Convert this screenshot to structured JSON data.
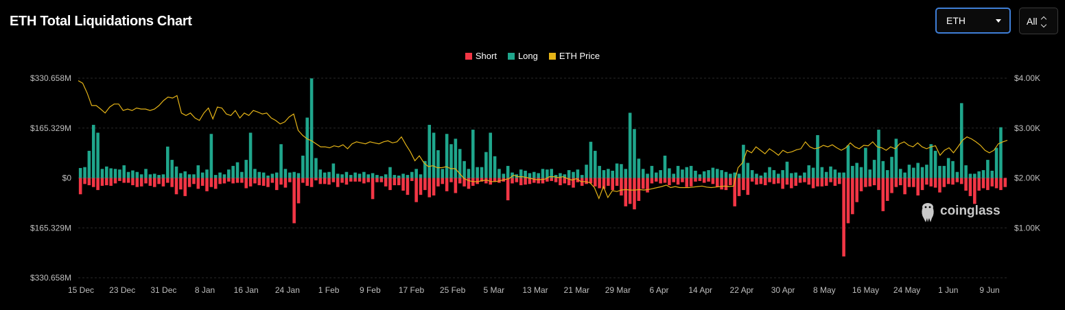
{
  "title": "ETH Total Liquidations Chart",
  "controls": {
    "coin_value": "ETH",
    "range_value": "All"
  },
  "watermark": "coinglass",
  "colors": {
    "short": "#f23645",
    "long": "#1fa68c",
    "price": "#e5b417",
    "grid": "#2a2a2a"
  },
  "legend": [
    {
      "label": "Short",
      "color": "#f23645"
    },
    {
      "label": "Long",
      "color": "#1fa68c"
    },
    {
      "label": "ETH Price",
      "color": "#e5b417"
    }
  ],
  "chart_data": {
    "type": "bar",
    "title": "ETH Total Liquidations Chart",
    "left_axis_ticks": [
      "$330.658M",
      "$165.329M",
      "$0",
      "$165.329M",
      "$330.658M"
    ],
    "right_axis_ticks": [
      "$4.00K",
      "$3.00K",
      "$2.00K",
      "$1.00K"
    ],
    "ylim_left": [
      -330.658,
      330.658
    ],
    "ylim_right": [
      0,
      4.0
    ],
    "x_tick_labels": [
      "15 Dec",
      "23 Dec",
      "31 Dec",
      "8 Jan",
      "16 Jan",
      "24 Jan",
      "1 Feb",
      "9 Feb",
      "17 Feb",
      "25 Feb",
      "5 Mar",
      "13 Mar",
      "21 Mar",
      "29 Mar",
      "6 Apr",
      "14 Apr",
      "22 Apr",
      "30 Apr",
      "8 May",
      "16 May",
      "24 May",
      "1 Jun",
      "9 Jun"
    ],
    "grid": true,
    "legend_position": "top-center",
    "series": [
      {
        "name": "Long",
        "unit": "$M",
        "values": [
          33,
          36,
          90,
          176,
          150,
          30,
          38,
          32,
          30,
          28,
          42,
          20,
          25,
          20,
          12,
          30,
          12,
          14,
          10,
          12,
          104,
          60,
          38,
          16,
          22,
          12,
          12,
          42,
          18,
          28,
          146,
          10,
          18,
          12,
          28,
          40,
          52,
          20,
          60,
          150,
          30,
          20,
          18,
          8,
          14,
          18,
          112,
          30,
          18,
          20,
          16,
          74,
          200,
          330,
          66,
          28,
          18,
          20,
          48,
          14,
          12,
          20,
          10,
          18,
          14,
          20,
          12,
          16,
          10,
          6,
          12,
          36,
          10,
          8,
          14,
          10,
          20,
          30,
          12,
          56,
          176,
          150,
          92,
          30,
          146,
          112,
          130,
          96,
          56,
          30,
          160,
          36,
          36,
          86,
          150,
          72,
          30,
          14,
          40,
          18,
          12,
          28,
          24,
          16,
          20,
          16,
          30,
          28,
          30,
          10,
          16,
          12,
          26,
          20,
          28,
          10,
          44,
          120,
          90,
          40,
          26,
          30,
          24,
          48,
          46,
          30,
          216,
          162,
          64,
          30,
          14,
          40,
          18,
          26,
          74,
          32,
          14,
          40,
          28,
          36,
          40,
          24,
          12,
          22,
          26,
          34,
          30,
          26,
          20,
          14,
          18,
          14,
          110,
          50,
          26,
          14,
          8,
          18,
          36,
          26,
          14,
          26,
          54,
          16,
          18,
          8,
          18,
          42,
          34,
          142,
          36,
          20,
          38,
          28,
          18,
          18,
          108,
          40,
          50,
          36,
          100,
          28,
          60,
          160,
          56,
          26,
          70,
          130,
          30,
          18,
          44,
          34,
          50,
          36,
          44,
          112,
          90,
          40,
          40,
          66,
          56,
          20,
          248,
          42,
          14,
          14,
          22,
          26,
          60,
          24,
          100,
          168
        ],
        "note": "Long liquidations (positive bars)"
      },
      {
        "name": "Short",
        "unit": "$M",
        "values": [
          54,
          20,
          24,
          30,
          40,
          26,
          24,
          26,
          18,
          10,
          16,
          16,
          24,
          30,
          28,
          18,
          26,
          30,
          20,
          28,
          16,
          30,
          54,
          38,
          60,
          30,
          20,
          36,
          26,
          44,
          30,
          36,
          20,
          18,
          12,
          18,
          16,
          16,
          34,
          28,
          18,
          24,
          26,
          30,
          16,
          40,
          22,
          32,
          14,
          150,
          84,
          16,
          26,
          30,
          8,
          20,
          20,
          22,
          14,
          30,
          16,
          22,
          12,
          12,
          12,
          18,
          14,
          70,
          14,
          14,
          28,
          40,
          24,
          24,
          42,
          56,
          10,
          80,
          56,
          40,
          64,
          58,
          28,
          20,
          44,
          14,
          50,
          18,
          28,
          36,
          26,
          20,
          12,
          18,
          22,
          12,
          16,
          12,
          74,
          18,
          14,
          24,
          22,
          20,
          16,
          18,
          18,
          12,
          10,
          14,
          24,
          18,
          24,
          32,
          14,
          26,
          20,
          18,
          28,
          34,
          36,
          26,
          40,
          26,
          58,
          94,
          86,
          104,
          76,
          36,
          48,
          18,
          12,
          18,
          16,
          24,
          14,
          22,
          14,
          30,
          28,
          12,
          10,
          16,
          12,
          20,
          30,
          38,
          40,
          24,
          94,
          60,
          40,
          56,
          12,
          22,
          20,
          24,
          14,
          20,
          18,
          36,
          22,
          34,
          26,
          16,
          14,
          22,
          34,
          28,
          28,
          26,
          14,
          26,
          20,
          260,
          150,
          120,
          80,
          44,
          30,
          28,
          24,
          40,
          110,
          76,
          50,
          30,
          24,
          54,
          30,
          30,
          58,
          40,
          22,
          28,
          32,
          48,
          30,
          20,
          22,
          14,
          20,
          42,
          60,
          86,
          42,
          34,
          40,
          28,
          34,
          40,
          30
        ],
        "note": "Short liquidations (negative bars)"
      },
      {
        "name": "ETH Price",
        "unit": "$K",
        "values": [
          3.95,
          3.9,
          3.7,
          3.45,
          3.45,
          3.38,
          3.3,
          3.42,
          3.48,
          3.48,
          3.35,
          3.38,
          3.35,
          3.4,
          3.38,
          3.38,
          3.35,
          3.38,
          3.45,
          3.55,
          3.62,
          3.6,
          3.65,
          3.3,
          3.25,
          3.3,
          3.2,
          3.15,
          3.3,
          3.4,
          3.18,
          3.42,
          3.4,
          3.28,
          3.25,
          3.35,
          3.2,
          3.3,
          3.25,
          3.35,
          3.32,
          3.28,
          3.3,
          3.2,
          3.15,
          3.08,
          3.12,
          3.22,
          3.28,
          2.95,
          2.85,
          2.78,
          2.74,
          2.68,
          2.62,
          2.62,
          2.6,
          2.64,
          2.62,
          2.66,
          2.58,
          2.68,
          2.72,
          2.7,
          2.68,
          2.72,
          2.7,
          2.68,
          2.72,
          2.74,
          2.7,
          2.72,
          2.82,
          2.66,
          2.52,
          2.34,
          2.44,
          2.3,
          2.22,
          2.24,
          2.2,
          2.2,
          2.22,
          2.18,
          2.18,
          2.08,
          1.98,
          1.94,
          1.92,
          1.92,
          1.94,
          1.95,
          1.92,
          1.92,
          1.94,
          1.96,
          1.98,
          2.05,
          2.02,
          2.02,
          2.0,
          1.98,
          1.96,
          1.96,
          1.97,
          2.02,
          2.02,
          2.0,
          2.02,
          1.98,
          1.95,
          1.98,
          1.92,
          1.92,
          1.9,
          1.8,
          1.58,
          1.82,
          1.6,
          1.74,
          1.72,
          1.75,
          1.76,
          1.75,
          1.75,
          1.76,
          1.75,
          1.76,
          1.78,
          1.8,
          1.82,
          1.85,
          1.8,
          1.82,
          1.8,
          1.8,
          1.8,
          1.81,
          1.82,
          1.83,
          1.81,
          1.8,
          1.81,
          1.82,
          1.83,
          1.82,
          1.83,
          2.2,
          2.3,
          2.55,
          2.5,
          2.62,
          2.55,
          2.48,
          2.58,
          2.52,
          2.45,
          2.55,
          2.5,
          2.52,
          2.56,
          2.58,
          2.72,
          2.62,
          2.58,
          2.6,
          2.65,
          2.62,
          2.66,
          2.6,
          2.55,
          2.6,
          2.7,
          2.62,
          2.58,
          2.65,
          2.64,
          2.72,
          2.62,
          2.6,
          2.55,
          2.62,
          2.58,
          2.68,
          2.72,
          2.65,
          2.62,
          2.7,
          2.62,
          2.58,
          2.62,
          2.64,
          2.45,
          2.55,
          2.6,
          2.5,
          2.62,
          2.75,
          2.82,
          2.78,
          2.72,
          2.65,
          2.55,
          2.5,
          2.55,
          2.68,
          2.72,
          2.75
        ],
        "note": "ETH price line (right axis)"
      }
    ]
  }
}
